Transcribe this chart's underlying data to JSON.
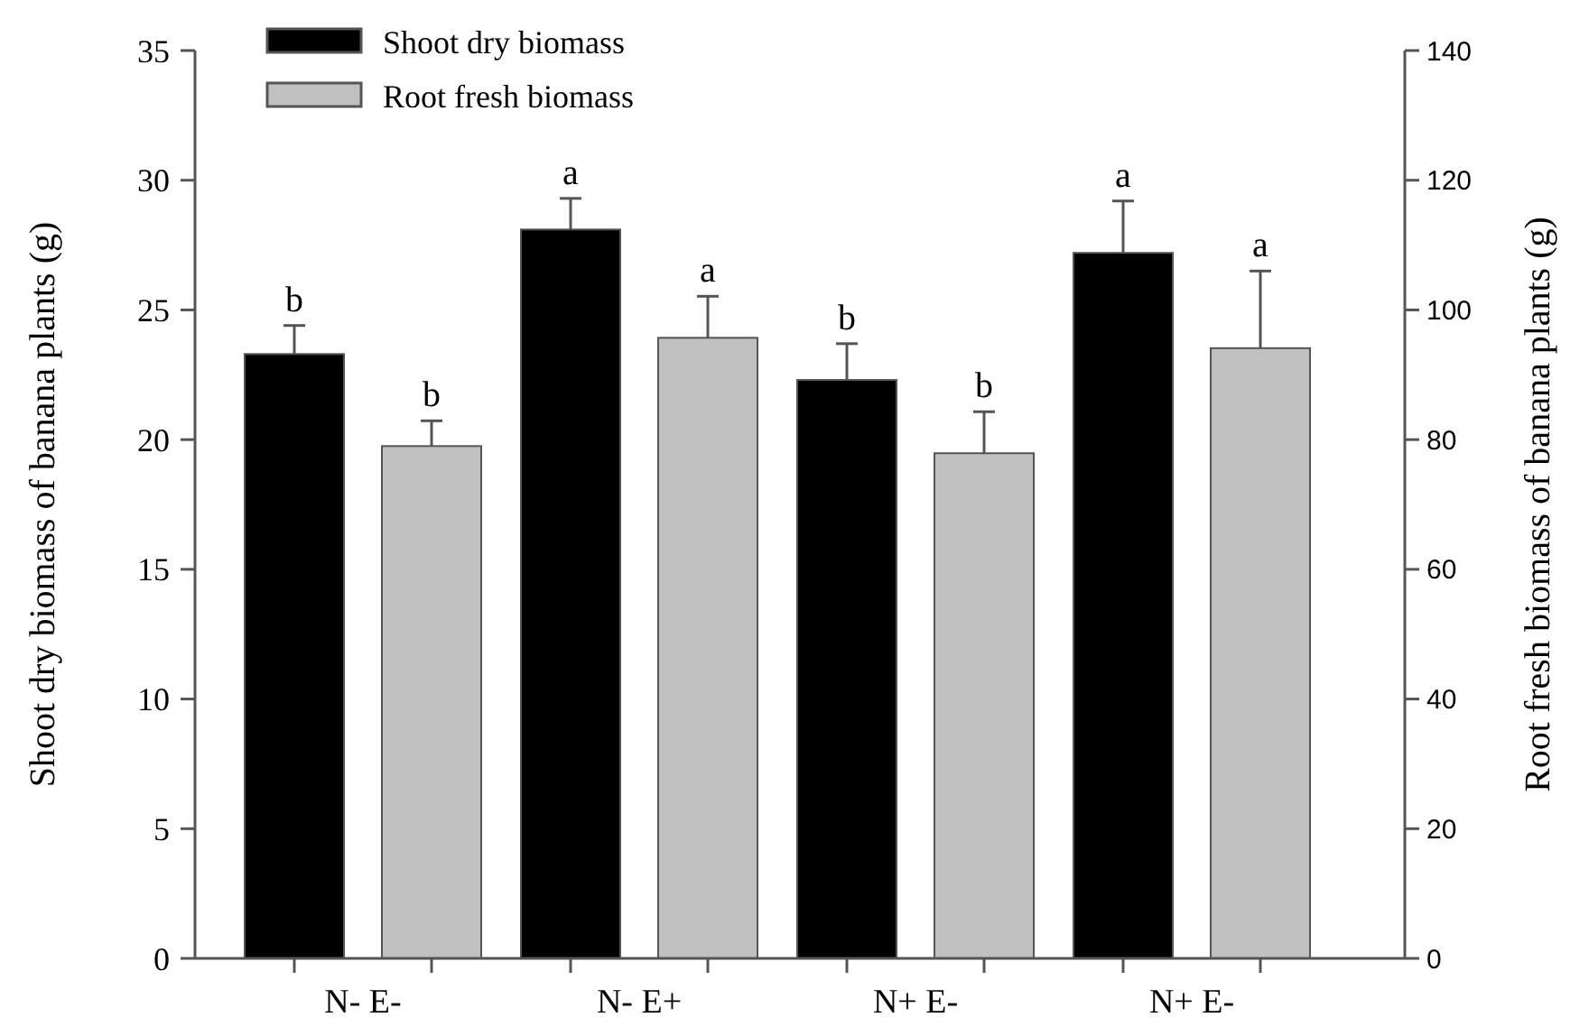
{
  "chart_data": {
    "type": "bar",
    "xlabel": null,
    "ylabel": "Shoot dry biomass of banana plants (g)",
    "y2label": "Root fresh biomass of banana plants (g)",
    "categories": [
      "N- E-",
      "N- E+",
      "N+ E-",
      "N+ E-"
    ],
    "series": [
      {
        "name": "Shoot dry biomass",
        "color": "#000000",
        "values": [
          23.3,
          28.1,
          22.3,
          27.2
        ],
        "errors": [
          1.1,
          1.2,
          1.4,
          2.0
        ],
        "value_labels": [
          "b",
          "a",
          "b",
          "a"
        ]
      },
      {
        "name": "Root fresh biomass",
        "color": "#c0c0c0",
        "axis": "y2",
        "values": [
          79.0,
          95.7,
          77.9,
          94.1
        ],
        "errors": [
          3.9,
          6.4,
          6.4,
          11.9
        ],
        "value_labels": [
          "b",
          "a",
          "b",
          "a"
        ]
      }
    ],
    "ylim": [
      0,
      35
    ],
    "yticks": [
      0,
      5,
      10,
      15,
      20,
      25,
      30,
      35
    ],
    "y2lim": [
      0,
      140
    ],
    "y2ticks": [
      0,
      20,
      40,
      60,
      80,
      100,
      120,
      140
    ],
    "legend": "top left",
    "grid": false
  }
}
